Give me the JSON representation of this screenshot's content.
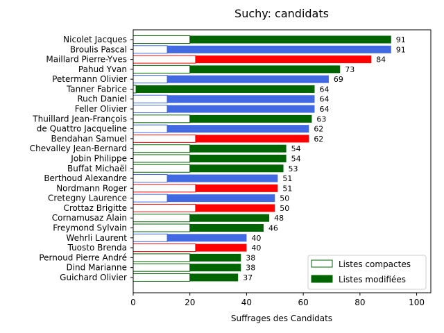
{
  "chart_data": {
    "type": "bar",
    "orientation": "horizontal",
    "stacked": true,
    "title": "Suchy: candidats",
    "xlabel": "Suffrages des Candidats",
    "ylabel": "",
    "xlim": [
      0,
      105
    ],
    "xticks": [
      0,
      20,
      40,
      60,
      80,
      100
    ],
    "grid": false,
    "legend_position": "bottom-right",
    "legend": [
      {
        "label": "Listes compactes",
        "style": "outline",
        "color": "#006400"
      },
      {
        "label": "Listes modifiées",
        "style": "filled",
        "color": "#006400"
      }
    ],
    "categories": [
      "Nicolet Jacques",
      "Broulis Pascal",
      "Maillard Pierre-Yves",
      "Pahud Yvan",
      "Petermann Olivier",
      "Tanner Fabrice",
      "Ruch Daniel",
      "Feller Olivier",
      "Thuillard Jean-François",
      "de Quattro Jacqueline",
      "Bendahan Samuel",
      "Chevalley Jean-Bernard",
      "Jobin Philippe",
      "Buffat Michaël",
      "Berthoud Alexandre",
      "Nordmann Roger",
      "Cretegny Laurence",
      "Crottaz Brigitte",
      "Cornamusaz Alain",
      "Freymond Sylvain",
      "Wehrli Laurent",
      "Tuosto Brenda",
      "Pernoud Pierre André",
      "Dind Marianne",
      "Guichard Olivier"
    ],
    "totals": [
      91,
      91,
      84,
      73,
      69,
      64,
      64,
      64,
      63,
      62,
      62,
      54,
      54,
      53,
      51,
      51,
      50,
      50,
      48,
      46,
      40,
      40,
      38,
      38,
      37
    ],
    "compact": [
      20,
      12,
      22,
      20,
      12,
      1,
      12,
      12,
      20,
      12,
      22,
      20,
      20,
      20,
      12,
      22,
      12,
      22,
      20,
      20,
      12,
      22,
      20,
      20,
      20
    ],
    "colors": [
      "#006400",
      "#4169e1",
      "#ff0000",
      "#006400",
      "#4169e1",
      "#006400",
      "#4169e1",
      "#4169e1",
      "#006400",
      "#4169e1",
      "#ff0000",
      "#006400",
      "#006400",
      "#006400",
      "#4169e1",
      "#ff0000",
      "#4169e1",
      "#ff0000",
      "#006400",
      "#006400",
      "#4169e1",
      "#ff0000",
      "#006400",
      "#006400",
      "#006400"
    ]
  }
}
